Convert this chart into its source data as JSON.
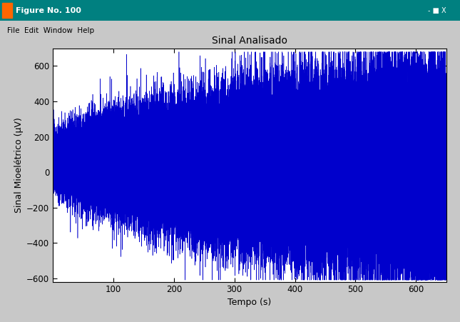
{
  "title": "Sinal Analisado",
  "xlabel": "Tempo (s)",
  "ylabel": "Sinal Mioelétrico (µV)",
  "xlim": [
    0,
    650
  ],
  "ylim": [
    -620,
    700
  ],
  "yticks": [
    -600,
    -400,
    -200,
    0,
    200,
    400,
    600
  ],
  "xticks": [
    100,
    200,
    300,
    400,
    500,
    600
  ],
  "line_color": "#0000CC",
  "bg_color": "#C8C8C8",
  "plot_bg_color": "#FFFFFF",
  "titlebar_color": "#008080",
  "window_title": "Figure No. 100",
  "menu_text": "File  Edit  Window  Help",
  "seed": 42,
  "n_points": 130000,
  "x_max": 650,
  "title_fontsize": 10,
  "label_fontsize": 9,
  "tick_fontsize": 8.5
}
